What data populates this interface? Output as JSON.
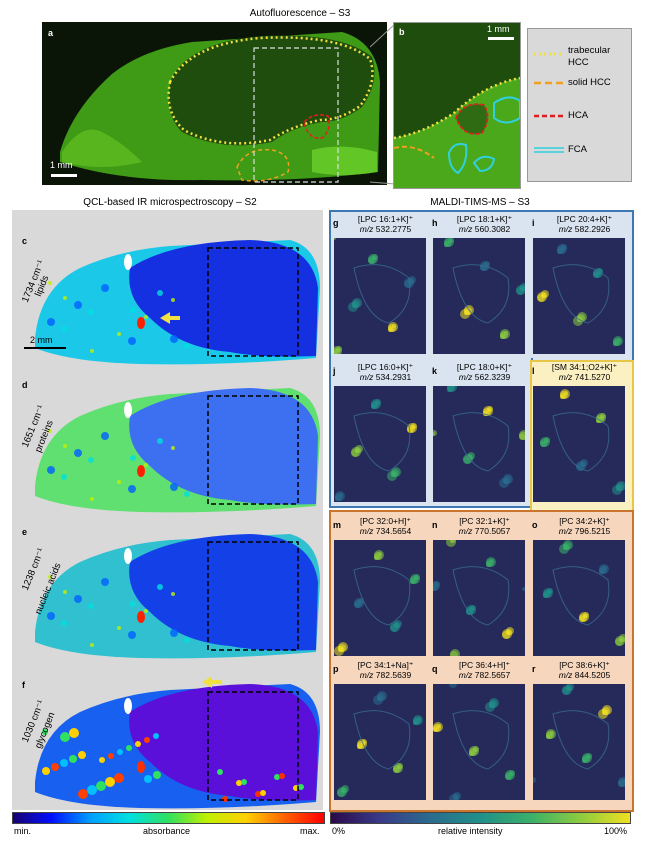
{
  "top": {
    "title": "Autofluorescence – S3",
    "panel_a": {
      "letter": "a",
      "scalebar": "1 mm"
    },
    "panel_b": {
      "letter": "b",
      "scalebar": "1 mm"
    },
    "legend": [
      {
        "label": "trabecular HCC",
        "color": "#f0e040",
        "style": "dotted"
      },
      {
        "label": "solid HCC",
        "color": "#f0a020",
        "style": "dashed"
      },
      {
        "label": "HCA",
        "color": "#e02020",
        "style": "dashed"
      },
      {
        "label": "FCA",
        "color": "#30d0e0",
        "style": "double"
      }
    ]
  },
  "ir": {
    "title": "QCL-based IR microspectroscopy – S2",
    "scalebar": "2 mm",
    "panels": [
      {
        "letter": "c",
        "wavenumber": "1734 cm⁻¹",
        "assign": "lipids"
      },
      {
        "letter": "d",
        "wavenumber": "1651 cm⁻¹",
        "assign": "proteins"
      },
      {
        "letter": "e",
        "wavenumber": "1238 cm⁻¹",
        "assign": "nucleic acids"
      },
      {
        "letter": "f",
        "wavenumber": "1030 cm⁻¹",
        "assign": "glycogen"
      }
    ]
  },
  "ms": {
    "title": "MALDI-TIMS-MS – S3",
    "panels": [
      {
        "letter": "g",
        "ion": "[LPC 16:1+K]⁺",
        "mz": "532.2775"
      },
      {
        "letter": "h",
        "ion": "[LPC 18:1+K]⁺",
        "mz": "560.3082"
      },
      {
        "letter": "i",
        "ion": "[LPC 20:4+K]⁺",
        "mz": "582.2926"
      },
      {
        "letter": "j",
        "ion": "[LPC 16:0+K]⁺",
        "mz": "534.2931"
      },
      {
        "letter": "k",
        "ion": "[LPC 18:0+K]⁺",
        "mz": "562.3239"
      },
      {
        "letter": "l",
        "ion": "[SM 34:1;O2+K]⁺",
        "mz": "741.5270"
      },
      {
        "letter": "m",
        "ion": "[PC 32:0+H]⁺",
        "mz": "734.5654"
      },
      {
        "letter": "n",
        "ion": "[PC 32:1+K]⁺",
        "mz": "770.5057"
      },
      {
        "letter": "o",
        "ion": "[PC 34:2+K]⁺",
        "mz": "796.5215"
      },
      {
        "letter": "p",
        "ion": "[PC 34:1+Na]⁺",
        "mz": "782.5639"
      },
      {
        "letter": "q",
        "ion": "[PC 36:4+H]⁺",
        "mz": "782.5657"
      },
      {
        "letter": "r",
        "ion": "[PC 38:6+K]⁺",
        "mz": "844.5205"
      }
    ],
    "mz_prefix": "m/z"
  },
  "colorbars": {
    "left": {
      "min": "min.",
      "mid": "absorbance",
      "max": "max."
    },
    "right": {
      "min": "0%",
      "mid": "relative intensity",
      "max": "100%"
    }
  }
}
